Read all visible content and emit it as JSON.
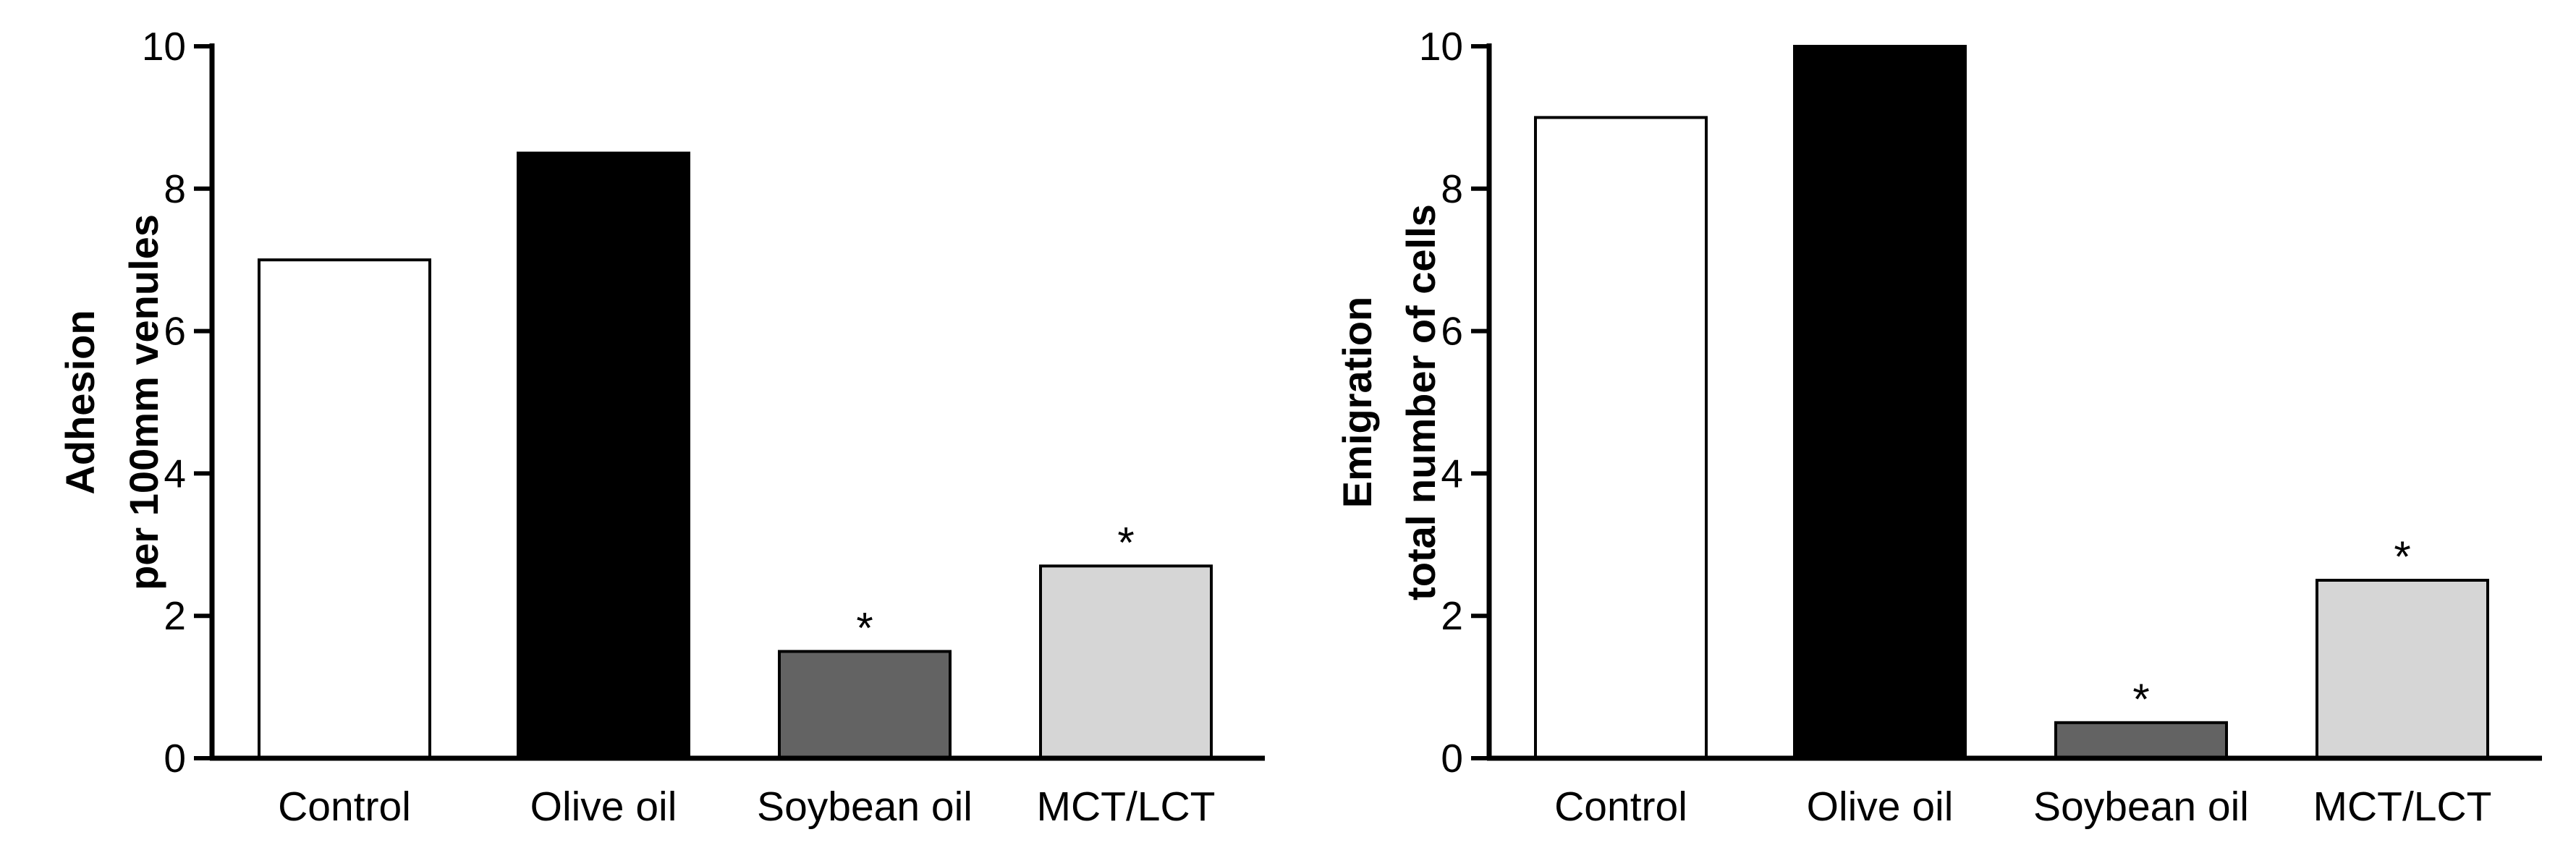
{
  "chart_data": [
    {
      "type": "bar",
      "title": "",
      "ylabel_lines": [
        "Adhesion",
        "per 100mm venules"
      ],
      "xlabel": "",
      "ylim": [
        0,
        10
      ],
      "yticks": [
        0,
        2,
        4,
        6,
        8,
        10
      ],
      "categories": [
        "Control",
        "Olive oil",
        "Soybean oil",
        "MCT/LCT"
      ],
      "values": [
        7.0,
        8.5,
        1.5,
        2.7
      ],
      "significance": [
        "",
        "",
        "*",
        "*"
      ],
      "colors": [
        "#ffffff",
        "#000000",
        "#636363",
        "#d6d6d6"
      ]
    },
    {
      "type": "bar",
      "title": "",
      "ylabel_lines": [
        "Emigration",
        "total number of cells"
      ],
      "xlabel": "",
      "ylim": [
        0,
        10
      ],
      "yticks": [
        0,
        2,
        4,
        6,
        8,
        10
      ],
      "categories": [
        "Control",
        "Olive oil",
        "Soybean oil",
        "MCT/LCT"
      ],
      "values": [
        9.0,
        10.0,
        0.5,
        2.5
      ],
      "significance": [
        "",
        "",
        "*",
        "*"
      ],
      "colors": [
        "#ffffff",
        "#000000",
        "#636363",
        "#d6d6d6"
      ]
    }
  ]
}
